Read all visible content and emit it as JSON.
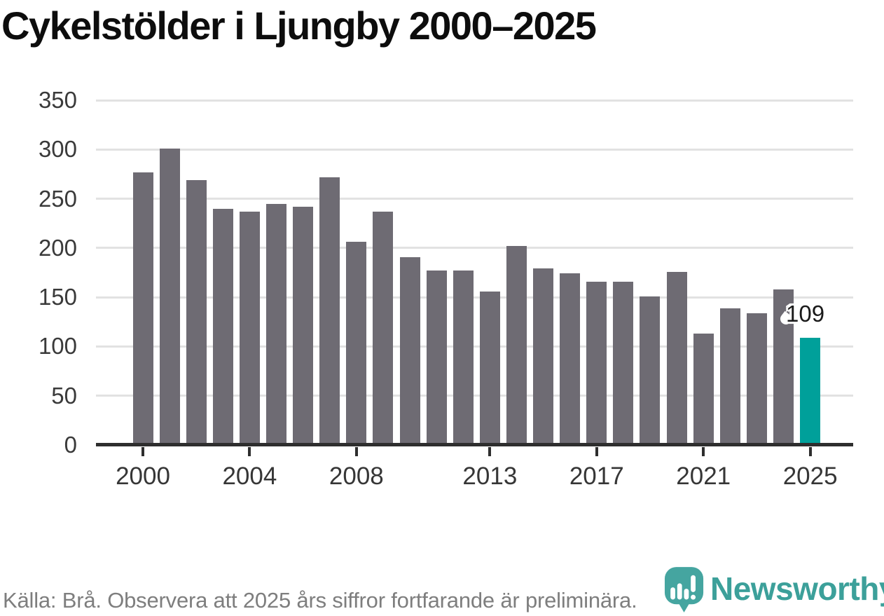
{
  "chart_data": {
    "type": "bar",
    "title": "Cykelstölder i Ljungby 2000–2025",
    "x": [
      2000,
      2001,
      2002,
      2003,
      2004,
      2005,
      2006,
      2007,
      2008,
      2009,
      2010,
      2011,
      2012,
      2013,
      2014,
      2015,
      2016,
      2017,
      2018,
      2019,
      2020,
      2021,
      2022,
      2023,
      2024,
      2025
    ],
    "values": [
      277,
      301,
      269,
      240,
      237,
      245,
      242,
      272,
      206,
      237,
      191,
      177,
      177,
      156,
      202,
      179,
      174,
      166,
      166,
      151,
      176,
      113,
      139,
      134,
      158,
      109
    ],
    "ylim": [
      0,
      350
    ],
    "y_ticks": [
      0,
      50,
      100,
      150,
      200,
      250,
      300,
      350
    ],
    "x_ticks": [
      2000,
      2004,
      2008,
      2013,
      2017,
      2021,
      2025
    ],
    "grid": "horizontal",
    "legend": "none",
    "highlight": {
      "x": 2025,
      "value": 109,
      "label": "109"
    },
    "colors": {
      "bar": "#6e6b73",
      "highlight": "#00a09a",
      "grid": "#e2e2e2",
      "axis": "#2e2e2e",
      "tick_label": "#3a3a3a"
    }
  },
  "footer": {
    "source_note": "Källa: Brå. Observera att 2025 års siffror fortfarande är preliminära.",
    "brand": {
      "name": "Newsworthy",
      "color": "#3ca09a",
      "logo_icon": "newsworthy-pin-icon"
    }
  }
}
